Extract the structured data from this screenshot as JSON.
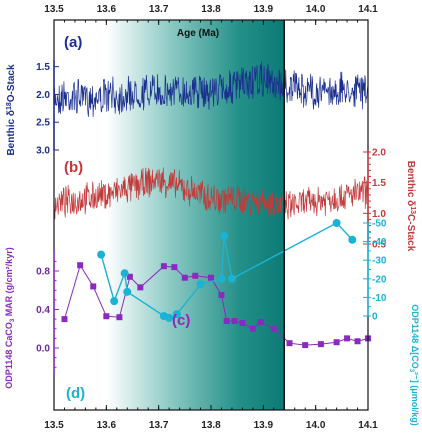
{
  "colors": {
    "blue": "#1a2f8f",
    "red": "#c23a3a",
    "purple": "#8a2bbf",
    "cyan": "#1ab3d6",
    "teal": "#0f7f7c",
    "frame": "#111111"
  },
  "chart_data": {
    "type": "line",
    "x_axis": {
      "label": "Age (Ma)",
      "min": 13.5,
      "max": 14.1,
      "ticks": [
        "13.5",
        "13.6",
        "13.7",
        "13.8",
        "13.9",
        "14.0",
        "14.1"
      ]
    },
    "shaded_interval": {
      "start": 13.6,
      "end": 13.94,
      "gradient": "white to teal"
    },
    "panels": [
      {
        "id": "a",
        "panel_label": "(a)",
        "name": "Benthic δ18O-Stack",
        "ylabel_prefix": "Benthic δ",
        "ylabel_sup": "18",
        "ylabel_suffix": "O-Stack",
        "ylim": [
          1.2,
          3.0
        ],
        "y_reversed": true,
        "yticks": [
          "1.5",
          "2.0",
          "2.5",
          "3.0"
        ],
        "series_style": "high-frequency noisy record",
        "trend": [
          [
            13.5,
            2.05
          ],
          [
            13.6,
            2.05
          ],
          [
            13.7,
            1.95
          ],
          [
            13.8,
            1.95
          ],
          [
            13.9,
            1.75
          ],
          [
            13.94,
            1.85
          ],
          [
            14.0,
            1.95
          ],
          [
            14.1,
            1.9
          ]
        ]
      },
      {
        "id": "b",
        "panel_label": "(b)",
        "name": "Benthic δ13C-Stack",
        "ylabel_prefix": "Benthic δ",
        "ylabel_sup": "13",
        "ylabel_suffix": "C-Stack",
        "ylim": [
          0.5,
          2.0
        ],
        "y_reversed": false,
        "yticks": [
          "0.5",
          "1.0",
          "1.5",
          "2.0"
        ],
        "series_style": "high-frequency noisy record",
        "trend": [
          [
            13.5,
            1.15
          ],
          [
            13.6,
            1.3
          ],
          [
            13.7,
            1.55
          ],
          [
            13.8,
            1.25
          ],
          [
            13.9,
            1.2
          ],
          [
            13.94,
            1.1
          ],
          [
            14.0,
            1.2
          ],
          [
            14.1,
            1.35
          ]
        ]
      },
      {
        "id": "c",
        "panel_label": "(c)",
        "ylabel_prefix": "ODP1148 CaCO",
        "ylabel_sub": "3",
        "ylabel_suffix": " MAR (g/cm²/kyr)",
        "ylim": [
          -0.25,
          0.95
        ],
        "yticks": [
          "0.0",
          "0.4",
          "0.8"
        ],
        "points": [
          [
            13.52,
            0.3
          ],
          [
            13.55,
            0.86
          ],
          [
            13.575,
            0.64
          ],
          [
            13.6,
            0.33
          ],
          [
            13.625,
            0.32
          ],
          [
            13.645,
            0.74
          ],
          [
            13.665,
            0.63
          ],
          [
            13.71,
            0.85
          ],
          [
            13.73,
            0.84
          ],
          [
            13.75,
            0.73
          ],
          [
            13.77,
            0.75
          ],
          [
            13.8,
            0.73
          ],
          [
            13.82,
            0.55
          ],
          [
            13.83,
            0.28
          ],
          [
            13.845,
            0.28
          ],
          [
            13.86,
            0.26
          ],
          [
            13.88,
            0.2
          ],
          [
            13.895,
            0.27
          ],
          [
            13.92,
            0.2
          ],
          [
            13.95,
            0.05
          ],
          [
            13.98,
            0.03
          ],
          [
            14.01,
            0.04
          ],
          [
            14.04,
            0.06
          ],
          [
            14.06,
            0.1
          ],
          [
            14.08,
            0.07
          ],
          [
            14.1,
            0.1
          ]
        ]
      },
      {
        "id": "d",
        "panel_label": "(d)",
        "ylabel_prefix": "ODP1148 Δ[CO",
        "ylabel_sub": "3",
        "ylabel_suffix": "²⁻] (μmol/kg)",
        "ylim": [
          -50,
          5
        ],
        "yticks": [
          "0",
          "-10",
          "-20",
          "-30",
          "-40",
          "-50"
        ],
        "points": [
          [
            13.59,
            -33
          ],
          [
            13.615,
            -8
          ],
          [
            13.635,
            -23
          ],
          [
            13.64,
            -13
          ],
          [
            13.71,
            0
          ],
          [
            13.72,
            1
          ],
          [
            13.735,
            -1
          ],
          [
            13.78,
            -17
          ],
          [
            13.82,
            -20
          ],
          [
            13.825,
            -43
          ],
          [
            13.84,
            -20
          ],
          [
            14.04,
            -50
          ],
          [
            14.07,
            -41
          ]
        ]
      }
    ]
  }
}
